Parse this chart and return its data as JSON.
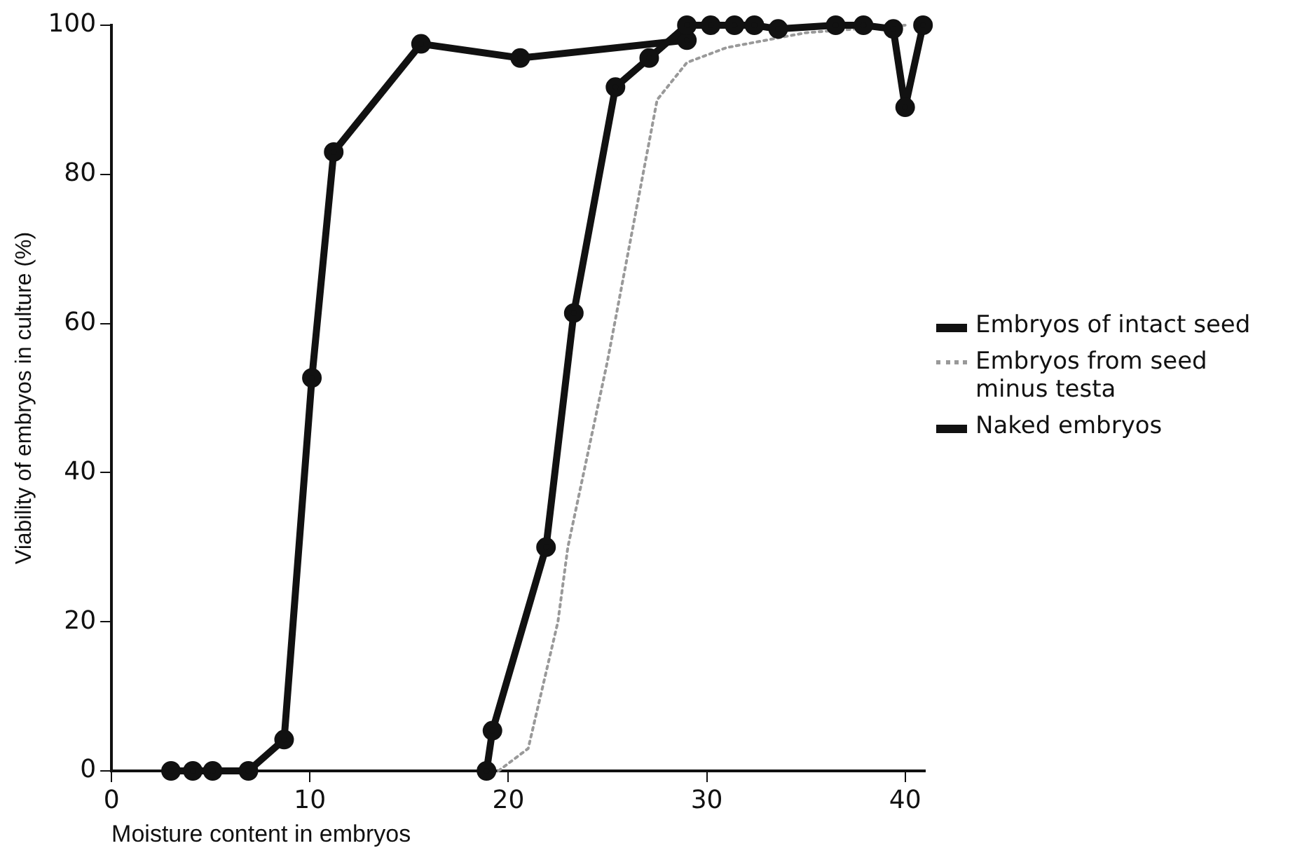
{
  "chart_data": {
    "type": "line",
    "xlabel": "Moisture content in embryos",
    "ylabel": "Viability of embryos in culture (%)",
    "xlim": [
      0,
      41
    ],
    "xticks": [
      0,
      10,
      20,
      30,
      40
    ],
    "ylim": [
      0,
      100
    ],
    "yticks": [
      0,
      20,
      40,
      60,
      80,
      100
    ],
    "grid": false,
    "legend": "right",
    "series": [
      {
        "name": "Embryos of intact seed",
        "color": "#111111",
        "marker": "circle",
        "line_style": "solid",
        "x": [
          18.9,
          19.2,
          21.9,
          23.3,
          25.4,
          27.1,
          29,
          30.2,
          31.4,
          32.4,
          33.6,
          36.5,
          37.9,
          39.4,
          40,
          40.9
        ],
        "values": [
          0,
          5.4,
          30,
          61.4,
          91.7,
          95.6,
          100,
          100,
          100,
          100,
          99.5,
          100,
          100,
          99.5,
          89,
          100
        ]
      },
      {
        "name": "Embryos from seed minus testa",
        "color": "#999999",
        "marker": "none",
        "line_style": "dotted",
        "x": [
          19.5,
          21,
          22.5,
          23,
          25,
          27.5,
          29,
          31,
          35,
          40
        ],
        "values": [
          0,
          3,
          20,
          30,
          55,
          90,
          95,
          97,
          99,
          100
        ]
      },
      {
        "name": "Naked embryos",
        "color": "#111111",
        "marker": "circle",
        "line_style": "solid",
        "x": [
          3,
          4.1,
          5.1,
          6.9,
          8.7,
          10.1,
          11.2,
          15.6,
          20.6,
          29
        ],
        "values": [
          0,
          0,
          0,
          0,
          4.2,
          52.7,
          83,
          97.5,
          95.6,
          98
        ]
      }
    ]
  }
}
